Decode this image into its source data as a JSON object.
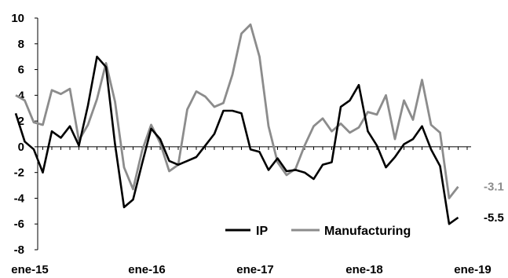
{
  "chart_data": {
    "type": "line",
    "title": "",
    "xlabel": "",
    "ylabel": "",
    "ylim": [
      -8,
      10
    ],
    "y_ticks": [
      10,
      8,
      6,
      4,
      2,
      0,
      -2,
      -4,
      -6,
      -8
    ],
    "x_tick_labels": [
      "ene-15",
      "ene-16",
      "ene-17",
      "ene-18",
      "ene-19"
    ],
    "grid": false,
    "legend_position": "bottom-right",
    "colors": {
      "IP": "#000000",
      "Manufacturing": "#8c8c8c"
    },
    "series": [
      {
        "name": "IP",
        "end_label": "-5.5",
        "values": [
          2.6,
          0.4,
          -0.2,
          -2.0,
          1.2,
          0.7,
          1.6,
          0.1,
          3.2,
          7.0,
          6.2,
          0.2,
          -4.7,
          -4.1,
          -1.3,
          1.4,
          0.6,
          -1.1,
          -1.4,
          -1.1,
          -0.8,
          0.1,
          1.0,
          2.8,
          2.8,
          2.6,
          -0.2,
          -0.4,
          -1.8,
          -0.9,
          -1.9,
          -1.8,
          -2.0,
          -2.5,
          -1.4,
          -1.2,
          3.1,
          3.6,
          4.8,
          1.2,
          0.1,
          -1.6,
          -0.8,
          0.2,
          0.6,
          1.6,
          -0.2,
          -1.5,
          -6.0,
          -5.5
        ]
      },
      {
        "name": "Manufacturing",
        "end_label": "-3.1",
        "values": [
          4.0,
          3.6,
          1.9,
          1.7,
          4.4,
          4.1,
          4.5,
          0.5,
          1.7,
          3.7,
          6.5,
          3.5,
          -1.6,
          -3.3,
          -0.3,
          1.7,
          0.3,
          -1.9,
          -1.4,
          2.9,
          4.3,
          3.9,
          3.1,
          3.4,
          5.6,
          8.8,
          9.5,
          7.0,
          1.6,
          -1.2,
          -2.2,
          -1.7,
          0.1,
          1.6,
          2.2,
          1.2,
          1.8,
          1.1,
          1.5,
          2.7,
          2.5,
          4.0,
          0.6,
          3.6,
          2.1,
          5.2,
          1.7,
          1.1,
          -4.0,
          -3.1
        ]
      }
    ]
  }
}
